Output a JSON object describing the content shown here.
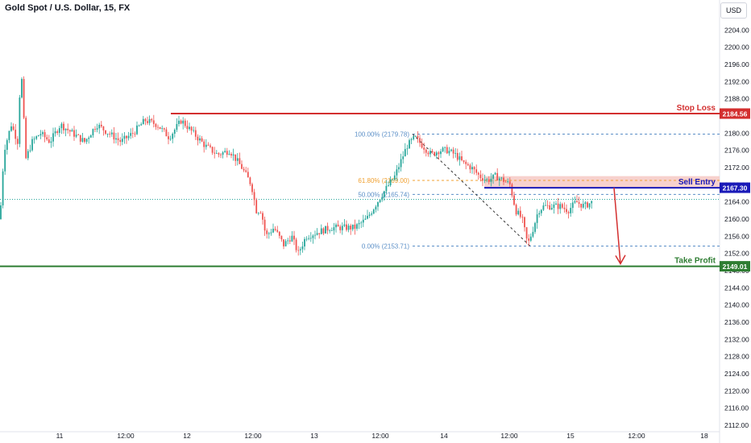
{
  "window": {
    "title": "Gold Spot / U.S. Dollar, 15, FX",
    "currency_button": "USD"
  },
  "chart_data": {
    "type": "candlestick",
    "title": "Gold Spot / U.S. Dollar, 15, FX",
    "ylim": [
      2110.5,
      2206.5
    ],
    "y_ticks": [
      2112,
      2116,
      2120,
      2124,
      2128,
      2132,
      2136,
      2140,
      2144,
      2148,
      2152,
      2156,
      2160,
      2164,
      2168,
      2172,
      2176,
      2180,
      2184,
      2188,
      2192,
      2196,
      2200,
      2204
    ],
    "x_tick_labels": [
      "11",
      "12:00",
      "12",
      "12:00",
      "13",
      "12:00",
      "14",
      "12:00",
      "15",
      "12:00",
      "18"
    ],
    "levels": [
      {
        "name": "Stop Loss",
        "value": 2184.56,
        "label": "2184.56",
        "color": "#d32f2f"
      },
      {
        "name": "Sell Entry",
        "value": 2167.3,
        "label": "2167.30",
        "color": "#1a1ab8"
      },
      {
        "name": "Take Profit",
        "value": 2149.01,
        "label": "2149.01",
        "color": "#2e7d32"
      }
    ],
    "fibonacci": [
      {
        "label": "100.00% (2179.78)",
        "value": 2179.78,
        "color": "#5b8fc7"
      },
      {
        "label": "61.80% (2169.00)",
        "value": 2169.0,
        "color": "#f0a030"
      },
      {
        "label": "50.00% (2165.74)",
        "value": 2165.74,
        "color": "#5b8fc7"
      },
      {
        "label": "0.00% (2153.71)",
        "value": 2153.71,
        "color": "#5b8fc7"
      }
    ],
    "entry_zone": [
      2167.3,
      2170.0
    ],
    "current_price": 2164.6,
    "price_path": [
      [
        0,
        2160
      ],
      [
        5,
        2176
      ],
      [
        14,
        2182
      ],
      [
        22,
        2178
      ],
      [
        26,
        2196
      ],
      [
        32,
        2174
      ],
      [
        40,
        2178
      ],
      [
        50,
        2180
      ],
      [
        62,
        2178
      ],
      [
        75,
        2182
      ],
      [
        90,
        2180
      ],
      [
        105,
        2178
      ],
      [
        120,
        2182
      ],
      [
        135,
        2180
      ],
      [
        150,
        2178
      ],
      [
        165,
        2180
      ],
      [
        180,
        2183
      ],
      [
        195,
        2182
      ],
      [
        210,
        2179
      ],
      [
        225,
        2183
      ],
      [
        240,
        2180
      ],
      [
        255,
        2177
      ],
      [
        270,
        2175
      ],
      [
        285,
        2176
      ],
      [
        300,
        2172
      ],
      [
        312,
        2168
      ],
      [
        318,
        2162
      ],
      [
        324,
        2162
      ],
      [
        330,
        2156
      ],
      [
        340,
        2158
      ],
      [
        352,
        2154
      ],
      [
        362,
        2156
      ],
      [
        370,
        2152
      ],
      [
        380,
        2156
      ],
      [
        395,
        2157
      ],
      [
        410,
        2158
      ],
      [
        425,
        2158
      ],
      [
        440,
        2158
      ],
      [
        455,
        2160
      ],
      [
        465,
        2163
      ],
      [
        475,
        2166
      ],
      [
        490,
        2170
      ],
      [
        505,
        2177
      ],
      [
        515,
        2179
      ],
      [
        525,
        2177
      ],
      [
        535,
        2175
      ],
      [
        545,
        2176
      ],
      [
        555,
        2176
      ],
      [
        565,
        2175
      ],
      [
        575,
        2173
      ],
      [
        585,
        2172
      ],
      [
        595,
        2170
      ],
      [
        605,
        2169
      ],
      [
        615,
        2170
      ],
      [
        625,
        2169
      ],
      [
        633,
        2168
      ],
      [
        640,
        2162
      ],
      [
        648,
        2160
      ],
      [
        655,
        2154
      ],
      [
        662,
        2158
      ],
      [
        668,
        2162
      ],
      [
        675,
        2163
      ],
      [
        685,
        2163
      ],
      [
        695,
        2163
      ],
      [
        705,
        2162
      ],
      [
        715,
        2164
      ],
      [
        725,
        2163
      ],
      [
        735,
        2164
      ]
    ]
  }
}
